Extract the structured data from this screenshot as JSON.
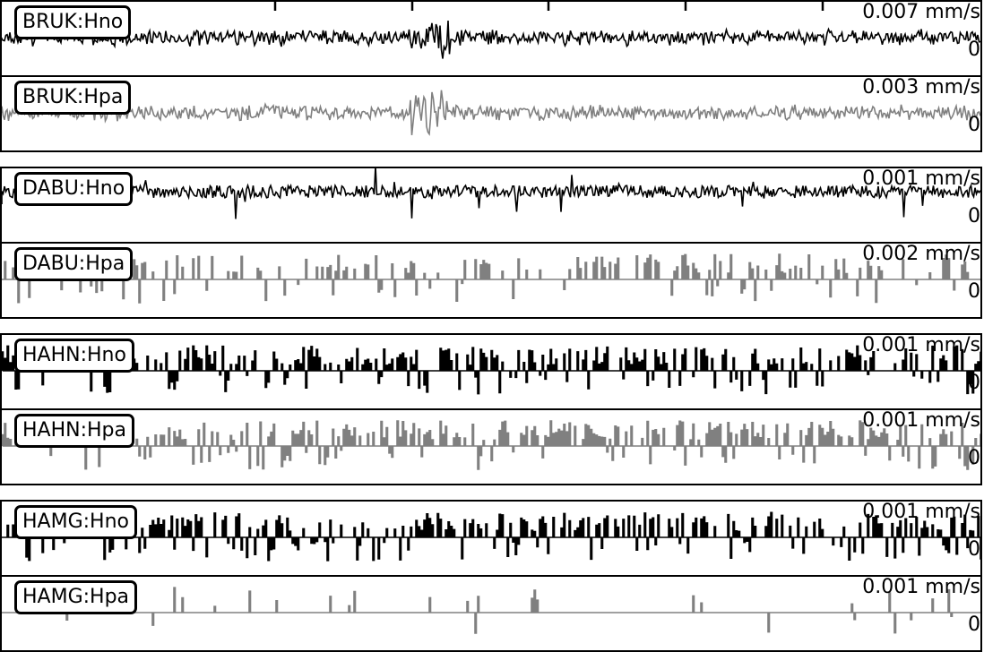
{
  "chart_data": {
    "type": "line",
    "panels": [
      {
        "station": "BRUK:Hno",
        "scale": "0.007 mm/s",
        "zero_label": "0",
        "color": "#000000",
        "style": "noise",
        "tick_marks": true
      },
      {
        "station": "BRUK:Hpa",
        "scale": "0.003 mm/s",
        "zero_label": "0",
        "color": "#808080",
        "style": "noise",
        "tick_marks": false
      },
      {
        "station": "DABU:Hno",
        "scale": "0.001 mm/s",
        "zero_label": "0",
        "color": "#000000",
        "style": "dense",
        "tick_marks": false
      },
      {
        "station": "DABU:Hpa",
        "scale": "0.002 mm/s",
        "zero_label": "0",
        "color": "#808080",
        "style": "sparse",
        "tick_marks": false
      },
      {
        "station": "HAHN:Hno",
        "scale": "0.001 mm/s",
        "zero_label": "0",
        "color": "#000000",
        "style": "step",
        "tick_marks": false
      },
      {
        "station": "HAHN:Hpa",
        "scale": "0.001 mm/s",
        "zero_label": "0",
        "color": "#808080",
        "style": "step",
        "tick_marks": false
      },
      {
        "station": "HAMG:Hno",
        "scale": "0.001 mm/s",
        "zero_label": "0",
        "color": "#000000",
        "style": "step",
        "tick_marks": false
      },
      {
        "station": "HAMG:Hpa",
        "scale": "0.001 mm/s",
        "zero_label": "0",
        "color": "#808080",
        "style": "spiky",
        "tick_marks": false
      }
    ]
  }
}
